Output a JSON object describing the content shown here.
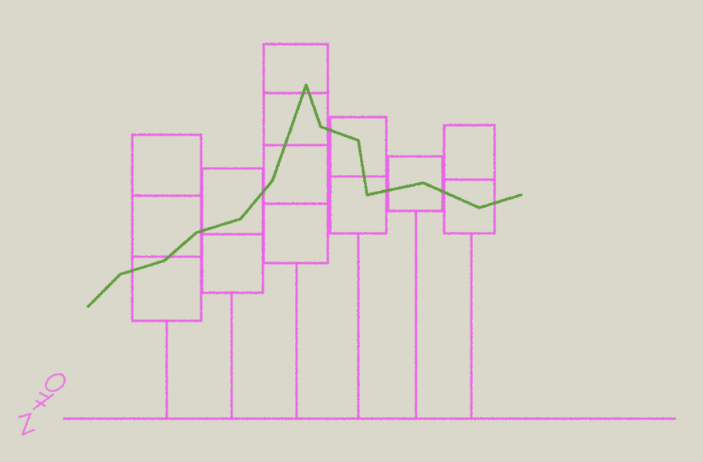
{
  "sketch": {
    "colors": {
      "background": "#dad8ca",
      "boxes": "#ec5ee8",
      "trend_line": "#5c9a3a"
    },
    "corner_glyph": "pink-scribble-icon"
  }
}
